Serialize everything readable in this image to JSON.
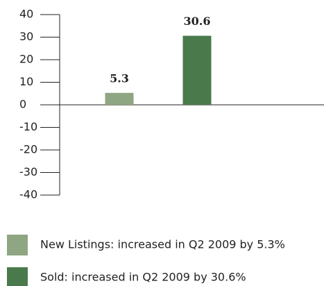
{
  "chart_data": {
    "type": "bar",
    "series": [
      {
        "name": "New Listings: increased in Q2 2009 by 5.3%",
        "color": "#8ea681",
        "values": [
          5.3
        ]
      },
      {
        "name": "Sold: increased in Q2 2009 by 30.6%",
        "color": "#4a7a4b",
        "values": [
          30.6
        ]
      }
    ],
    "ylim": [
      -40,
      40
    ],
    "yticks": [
      -40,
      -30,
      -20,
      -10,
      0,
      10,
      20,
      30,
      40
    ]
  }
}
